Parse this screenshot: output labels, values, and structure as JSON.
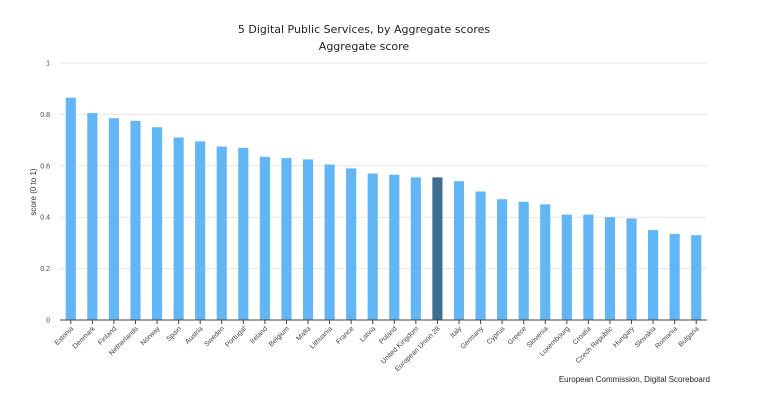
{
  "chart_data": {
    "type": "bar",
    "title": "5 Digital Public Services, by Aggregate scores",
    "subtitle": "Aggregate score",
    "xlabel": "",
    "ylabel": "score (0 to 1)",
    "ylim": [
      0,
      1
    ],
    "yticks": [
      "0",
      "0.2",
      "0.4",
      "0.6",
      "0.8",
      "1"
    ],
    "grid": true,
    "legend": "none",
    "source": "European Commission, Digital Scoreboard",
    "colors": {
      "bar": "#62b6f5",
      "highlight": "#3f6e93"
    },
    "highlight_category": "European Union 28",
    "categories": [
      "Estonia",
      "Denmark",
      "Finland",
      "Netherlands",
      "Norway",
      "Spain",
      "Austria",
      "Sweden",
      "Portugal",
      "Ireland",
      "Belgium",
      "Malta",
      "Lithuania",
      "France",
      "Latvia",
      "Poland",
      "United Kingdom",
      "European Union 28",
      "Italy",
      "Germany",
      "Cyprus",
      "Greece",
      "Slovenia",
      "Luxembourg",
      "Croatia",
      "Czech Republic",
      "Hungary",
      "Slovakia",
      "Romania",
      "Bulgaria"
    ],
    "values": [
      0.865,
      0.805,
      0.785,
      0.775,
      0.75,
      0.71,
      0.695,
      0.675,
      0.67,
      0.635,
      0.63,
      0.625,
      0.605,
      0.59,
      0.57,
      0.565,
      0.555,
      0.555,
      0.54,
      0.5,
      0.47,
      0.46,
      0.45,
      0.41,
      0.41,
      0.4,
      0.395,
      0.35,
      0.335,
      0.33
    ]
  }
}
